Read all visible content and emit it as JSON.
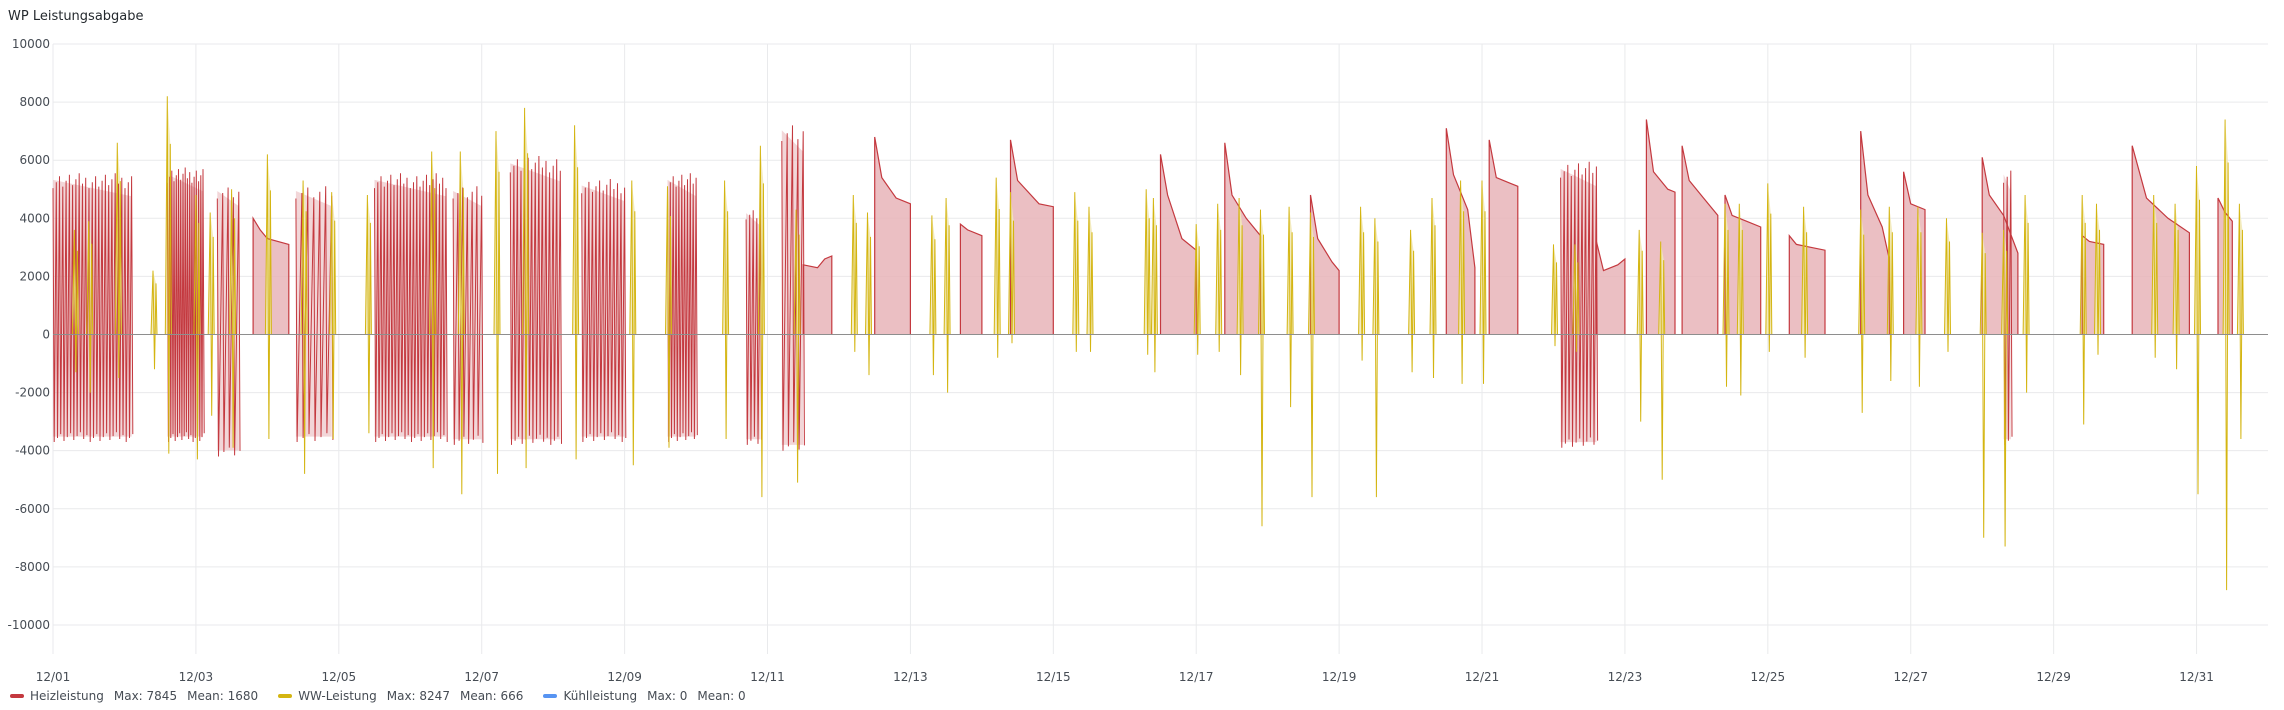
{
  "panel": {
    "title": "WP Leistungsabgabe"
  },
  "chart_data": {
    "type": "area",
    "title": "WP Leistungsabgabe",
    "xlabel": "",
    "ylabel": "",
    "x_ticks": [
      "12/01",
      "12/03",
      "12/05",
      "12/07",
      "12/09",
      "12/11",
      "12/13",
      "12/15",
      "12/17",
      "12/19",
      "12/21",
      "12/23",
      "12/25",
      "12/27",
      "12/29",
      "12/31"
    ],
    "y_ticks": [
      10000,
      8000,
      6000,
      4000,
      2000,
      0,
      -2000,
      -4000,
      -6000,
      -8000,
      -10000
    ],
    "ylim": [
      -11000,
      10000
    ],
    "xlim_days": [
      1,
      32
    ],
    "grid": true,
    "legend_position": "bottom",
    "series": [
      {
        "name": "Heizleistung",
        "color": "#c4393f",
        "fill": "#e8b4b8",
        "max": 7845,
        "mean": 1680,
        "spike_bursts": [
          {
            "start": 1.0,
            "end": 2.1,
            "count": 24,
            "high": 5600,
            "low": -3700
          },
          {
            "start": 2.6,
            "end": 3.1,
            "count": 16,
            "high": 5800,
            "low": -3700
          },
          {
            "start": 3.3,
            "end": 3.6,
            "count": 4,
            "high": 5200,
            "low": -4200
          },
          {
            "start": 4.4,
            "end": 4.9,
            "count": 6,
            "high": 5200,
            "low": -3700
          },
          {
            "start": 5.5,
            "end": 6.5,
            "count": 22,
            "high": 5600,
            "low": -3700
          },
          {
            "start": 6.6,
            "end": 7.0,
            "count": 6,
            "high": 5200,
            "low": -3800
          },
          {
            "start": 7.4,
            "end": 8.1,
            "count": 14,
            "high": 6200,
            "low": -3800
          },
          {
            "start": 8.4,
            "end": 9.0,
            "count": 12,
            "high": 5400,
            "low": -3700
          },
          {
            "start": 9.6,
            "end": 10.0,
            "count": 10,
            "high": 5600,
            "low": -3700
          },
          {
            "start": 10.7,
            "end": 10.9,
            "count": 4,
            "high": 4400,
            "low": -3800
          },
          {
            "start": 11.2,
            "end": 11.5,
            "count": 4,
            "high": 7400,
            "low": -4000
          },
          {
            "start": 22.1,
            "end": 22.6,
            "count": 10,
            "high": 6000,
            "low": -3900
          },
          {
            "start": 28.3,
            "end": 28.4,
            "count": 2,
            "high": 5800,
            "low": -3800
          }
        ],
        "plateaus": [
          {
            "start": 3.8,
            "end": 4.3,
            "points": [
              [
                3.8,
                4000
              ],
              [
                3.9,
                3600
              ],
              [
                4.0,
                3300
              ],
              [
                4.3,
                3100
              ]
            ]
          },
          {
            "start": 11.5,
            "end": 11.9,
            "points": [
              [
                11.5,
                2400
              ],
              [
                11.7,
                2300
              ],
              [
                11.8,
                2600
              ],
              [
                11.9,
                2700
              ]
            ]
          },
          {
            "start": 12.5,
            "end": 13.0,
            "points": [
              [
                12.5,
                6800
              ],
              [
                12.6,
                5400
              ],
              [
                12.8,
                4700
              ],
              [
                13.0,
                4500
              ]
            ]
          },
          {
            "start": 13.7,
            "end": 14.0,
            "points": [
              [
                13.7,
                3800
              ],
              [
                13.8,
                3600
              ],
              [
                14.0,
                3400
              ]
            ]
          },
          {
            "start": 14.4,
            "end": 15.0,
            "points": [
              [
                14.4,
                6700
              ],
              [
                14.5,
                5300
              ],
              [
                14.8,
                4500
              ],
              [
                15.0,
                4400
              ]
            ]
          },
          {
            "start": 16.5,
            "end": 17.0,
            "points": [
              [
                16.5,
                6200
              ],
              [
                16.6,
                4800
              ],
              [
                16.8,
                3300
              ],
              [
                17.0,
                2900
              ]
            ]
          },
          {
            "start": 17.4,
            "end": 17.9,
            "points": [
              [
                17.4,
                6600
              ],
              [
                17.5,
                4800
              ],
              [
                17.7,
                4000
              ],
              [
                17.9,
                3400
              ]
            ]
          },
          {
            "start": 18.6,
            "end": 19.0,
            "points": [
              [
                18.6,
                4800
              ],
              [
                18.7,
                3300
              ],
              [
                18.9,
                2500
              ],
              [
                19.0,
                2200
              ]
            ]
          },
          {
            "start": 20.5,
            "end": 20.9,
            "points": [
              [
                20.5,
                7100
              ],
              [
                20.6,
                5500
              ],
              [
                20.8,
                4300
              ],
              [
                20.9,
                2300
              ]
            ]
          },
          {
            "start": 21.1,
            "end": 21.5,
            "points": [
              [
                21.1,
                6700
              ],
              [
                21.2,
                5400
              ],
              [
                21.4,
                5200
              ],
              [
                21.5,
                5100
              ]
            ]
          },
          {
            "start": 22.6,
            "end": 23.0,
            "points": [
              [
                22.6,
                3200
              ],
              [
                22.7,
                2200
              ],
              [
                22.9,
                2400
              ],
              [
                23.0,
                2600
              ]
            ]
          },
          {
            "start": 23.3,
            "end": 23.7,
            "points": [
              [
                23.3,
                7400
              ],
              [
                23.4,
                5600
              ],
              [
                23.6,
                5000
              ],
              [
                23.7,
                4900
              ]
            ]
          },
          {
            "start": 23.8,
            "end": 24.3,
            "points": [
              [
                23.8,
                6500
              ],
              [
                23.9,
                5300
              ],
              [
                24.1,
                4700
              ],
              [
                24.3,
                4100
              ]
            ]
          },
          {
            "start": 24.4,
            "end": 24.9,
            "points": [
              [
                24.4,
                4800
              ],
              [
                24.5,
                4100
              ],
              [
                24.7,
                3900
              ],
              [
                24.9,
                3700
              ]
            ]
          },
          {
            "start": 25.3,
            "end": 25.8,
            "points": [
              [
                25.3,
                3400
              ],
              [
                25.4,
                3100
              ],
              [
                25.6,
                3000
              ],
              [
                25.8,
                2900
              ]
            ]
          },
          {
            "start": 26.3,
            "end": 26.7,
            "points": [
              [
                26.3,
                7000
              ],
              [
                26.4,
                4800
              ],
              [
                26.6,
                3700
              ],
              [
                26.7,
                2600
              ]
            ]
          },
          {
            "start": 26.9,
            "end": 27.2,
            "points": [
              [
                26.9,
                5600
              ],
              [
                27.0,
                4500
              ],
              [
                27.2,
                4300
              ]
            ]
          },
          {
            "start": 28.0,
            "end": 28.5,
            "points": [
              [
                28.0,
                6100
              ],
              [
                28.1,
                4800
              ],
              [
                28.3,
                4100
              ],
              [
                28.5,
                2800
              ]
            ]
          },
          {
            "start": 29.4,
            "end": 29.7,
            "points": [
              [
                29.4,
                3400
              ],
              [
                29.5,
                3200
              ],
              [
                29.7,
                3100
              ]
            ]
          },
          {
            "start": 30.1,
            "end": 30.9,
            "points": [
              [
                30.1,
                6500
              ],
              [
                30.3,
                4700
              ],
              [
                30.6,
                4000
              ],
              [
                30.9,
                3500
              ]
            ]
          },
          {
            "start": 31.3,
            "end": 31.5,
            "points": [
              [
                31.3,
                4700
              ],
              [
                31.4,
                4200
              ],
              [
                31.5,
                3900
              ]
            ]
          }
        ]
      },
      {
        "name": "WW-Leistung",
        "color": "#d4b511",
        "fill": "#f2e9b8",
        "max": 8247,
        "mean": 666,
        "spikes": [
          [
            1.3,
            3600,
            -1300
          ],
          [
            1.5,
            3900,
            -2000
          ],
          [
            1.9,
            6600,
            -1500
          ],
          [
            2.4,
            2200,
            -1200
          ],
          [
            2.6,
            8200,
            -4100
          ],
          [
            3.0,
            4800,
            -4300
          ],
          [
            3.2,
            4200,
            -2800
          ],
          [
            3.5,
            5000,
            -3900
          ],
          [
            4.0,
            6200,
            -3600
          ],
          [
            4.5,
            5300,
            -4800
          ],
          [
            4.9,
            4900,
            -3600
          ],
          [
            5.4,
            4800,
            -3400
          ],
          [
            6.3,
            6300,
            -4600
          ],
          [
            6.7,
            6300,
            -5500
          ],
          [
            7.2,
            7000,
            -4800
          ],
          [
            7.6,
            7800,
            -4600
          ],
          [
            8.3,
            7200,
            -4300
          ],
          [
            9.1,
            5300,
            -4500
          ],
          [
            9.6,
            5100,
            -3900
          ],
          [
            10.4,
            5300,
            -3600
          ],
          [
            10.9,
            6500,
            -5600
          ],
          [
            11.4,
            4300,
            -5100
          ],
          [
            12.2,
            4800,
            -600
          ],
          [
            12.4,
            4200,
            -1400
          ],
          [
            13.3,
            4100,
            -1400
          ],
          [
            13.5,
            4700,
            -2000
          ],
          [
            14.2,
            5400,
            -800
          ],
          [
            14.4,
            4900,
            -300
          ],
          [
            15.3,
            4900,
            -600
          ],
          [
            15.5,
            4400,
            -600
          ],
          [
            16.3,
            5000,
            -700
          ],
          [
            16.4,
            4700,
            -1300
          ],
          [
            17.0,
            3800,
            -700
          ],
          [
            17.3,
            4500,
            -600
          ],
          [
            17.6,
            4700,
            -1400
          ],
          [
            17.9,
            4300,
            -6600
          ],
          [
            18.3,
            4400,
            -2500
          ],
          [
            18.6,
            4200,
            -5600
          ],
          [
            19.3,
            4400,
            -900
          ],
          [
            19.5,
            4000,
            -5600
          ],
          [
            20.0,
            3600,
            -1300
          ],
          [
            20.3,
            4700,
            -1500
          ],
          [
            20.7,
            5300,
            -1700
          ],
          [
            21.0,
            5300,
            -1700
          ],
          [
            22.0,
            3100,
            -400
          ],
          [
            22.3,
            3100,
            -600
          ],
          [
            23.2,
            3600,
            -3000
          ],
          [
            23.5,
            3200,
            -5000
          ],
          [
            24.4,
            4500,
            -1800
          ],
          [
            24.6,
            4500,
            -2100
          ],
          [
            25.0,
            5200,
            -600
          ],
          [
            25.5,
            4400,
            -800
          ],
          [
            26.3,
            4300,
            -2700
          ],
          [
            26.7,
            4400,
            -1600
          ],
          [
            27.1,
            4400,
            -1800
          ],
          [
            27.5,
            4000,
            -600
          ],
          [
            28.0,
            3500,
            -7000
          ],
          [
            28.3,
            3600,
            -7300
          ],
          [
            28.6,
            4800,
            -2000
          ],
          [
            29.4,
            4800,
            -3100
          ],
          [
            29.6,
            4500,
            -700
          ],
          [
            30.4,
            4800,
            -800
          ],
          [
            30.7,
            4500,
            -1200
          ],
          [
            31.0,
            5800,
            -5500
          ],
          [
            31.4,
            7400,
            -8800
          ],
          [
            31.6,
            4500,
            -3600
          ]
        ]
      },
      {
        "name": "Kühlleistung",
        "color": "#5794f2",
        "max": 0,
        "mean": 0
      }
    ]
  },
  "legend": {
    "items": [
      {
        "name": "Heizleistung",
        "stat1": "Max: 7845",
        "stat2": "Mean: 1680",
        "color": "#c4393f"
      },
      {
        "name": "WW-Leistung",
        "stat1": "Max: 8247",
        "stat2": "Mean: 666",
        "color": "#d4b511"
      },
      {
        "name": "Kühlleistung",
        "stat1": "Max: 0",
        "stat2": "Mean: 0",
        "color": "#5794f2"
      }
    ]
  }
}
